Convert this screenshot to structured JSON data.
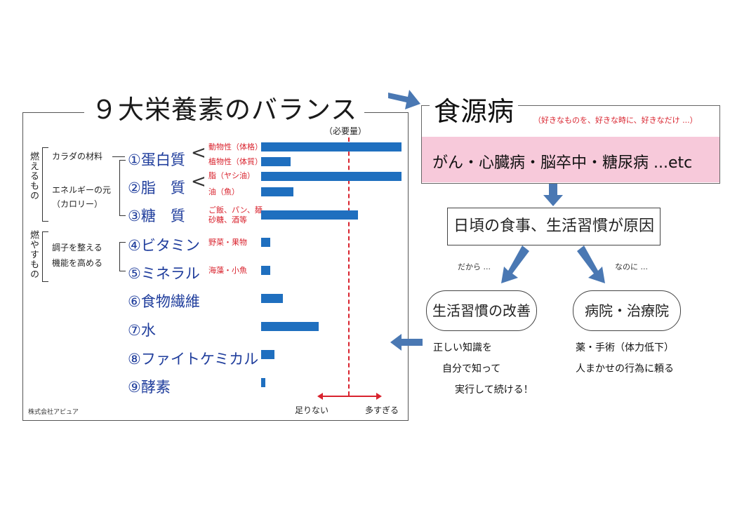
{
  "left_panel": {
    "title": "９大栄養素のバランス",
    "categories": {
      "burn": "燃えるもの",
      "burn_easy": "燃やすもの"
    },
    "groups": {
      "body_material": "カラダの材料",
      "energy_source": "エネルギーの元",
      "calorie": "（カロリー）",
      "regulate_1": "調子を整える",
      "regulate_2": "機能を高める"
    },
    "required_label": "（必要量）",
    "scale_low": "足りない",
    "scale_high": "多すぎる",
    "company": "株式会社アピュア",
    "nutrients": [
      {
        "label": "①蛋白質",
        "note": ""
      },
      {
        "label": "②脂　質",
        "note": ""
      },
      {
        "label": "③糖　質",
        "note": "ご飯、パン、麺\n砂糖、酒等"
      },
      {
        "label": "④ビタミン",
        "note": "野菜・果物"
      },
      {
        "label": "⑤ミネラル",
        "note": "海藻・小魚"
      },
      {
        "label": "⑥食物繊維",
        "note": ""
      },
      {
        "label": "⑦水",
        "note": ""
      },
      {
        "label": "⑧ファイトケミカル",
        "note": ""
      },
      {
        "label": "⑨酵素",
        "note": ""
      }
    ],
    "sub_notes": {
      "protein_animal": "動物性（体格）",
      "protein_plant": "植物性（体質）",
      "fat_palm": "脂（ヤシ油）",
      "fat_fish": "油（魚）"
    }
  },
  "chart_data": {
    "type": "bar",
    "orientation": "horizontal",
    "categories": [
      "動物性（体格）",
      "植物性（体質）",
      "脂（ヤシ油）",
      "油（魚）",
      "③糖　質",
      "④ビタミン",
      "⑤ミネラル",
      "⑥食物繊維",
      "⑦水",
      "⑧ファイトケミカル",
      "⑨酵素"
    ],
    "values": [
      200,
      42,
      200,
      46,
      138,
      13,
      13,
      31,
      82,
      19,
      6
    ],
    "required": 124,
    "xlim": [
      0,
      200
    ],
    "grid": false,
    "color": "#1f6fbf",
    "required_color": "#d9232e"
  },
  "right_panel": {
    "title": "食源病",
    "subtitle": "（好きなものを、好きな時に、好きなだけ ...）",
    "diseases": "がん・心臓病・脳卒中・糖尿病 ...etc",
    "cause": "日頃の食事、生活習慣が原因",
    "so_label": "だから ...",
    "but_label": "なのに ...",
    "improve": "生活習慣の改善",
    "hospital": "病院・治療院",
    "improve_note_1": "正しい知識を",
    "improve_note_2": "自分で知って",
    "improve_note_3": "実行して続ける！",
    "hospital_note_1": "薬・手術（体力低下）",
    "hospital_note_2": "人まかせの行為に頼る"
  },
  "colors": {
    "bar": "#1f6fbf",
    "accent_red": "#d9232e",
    "nutrient_blue": "#1f3d9c",
    "pink": "#f7c9da",
    "arrow": "#4a78b3"
  }
}
